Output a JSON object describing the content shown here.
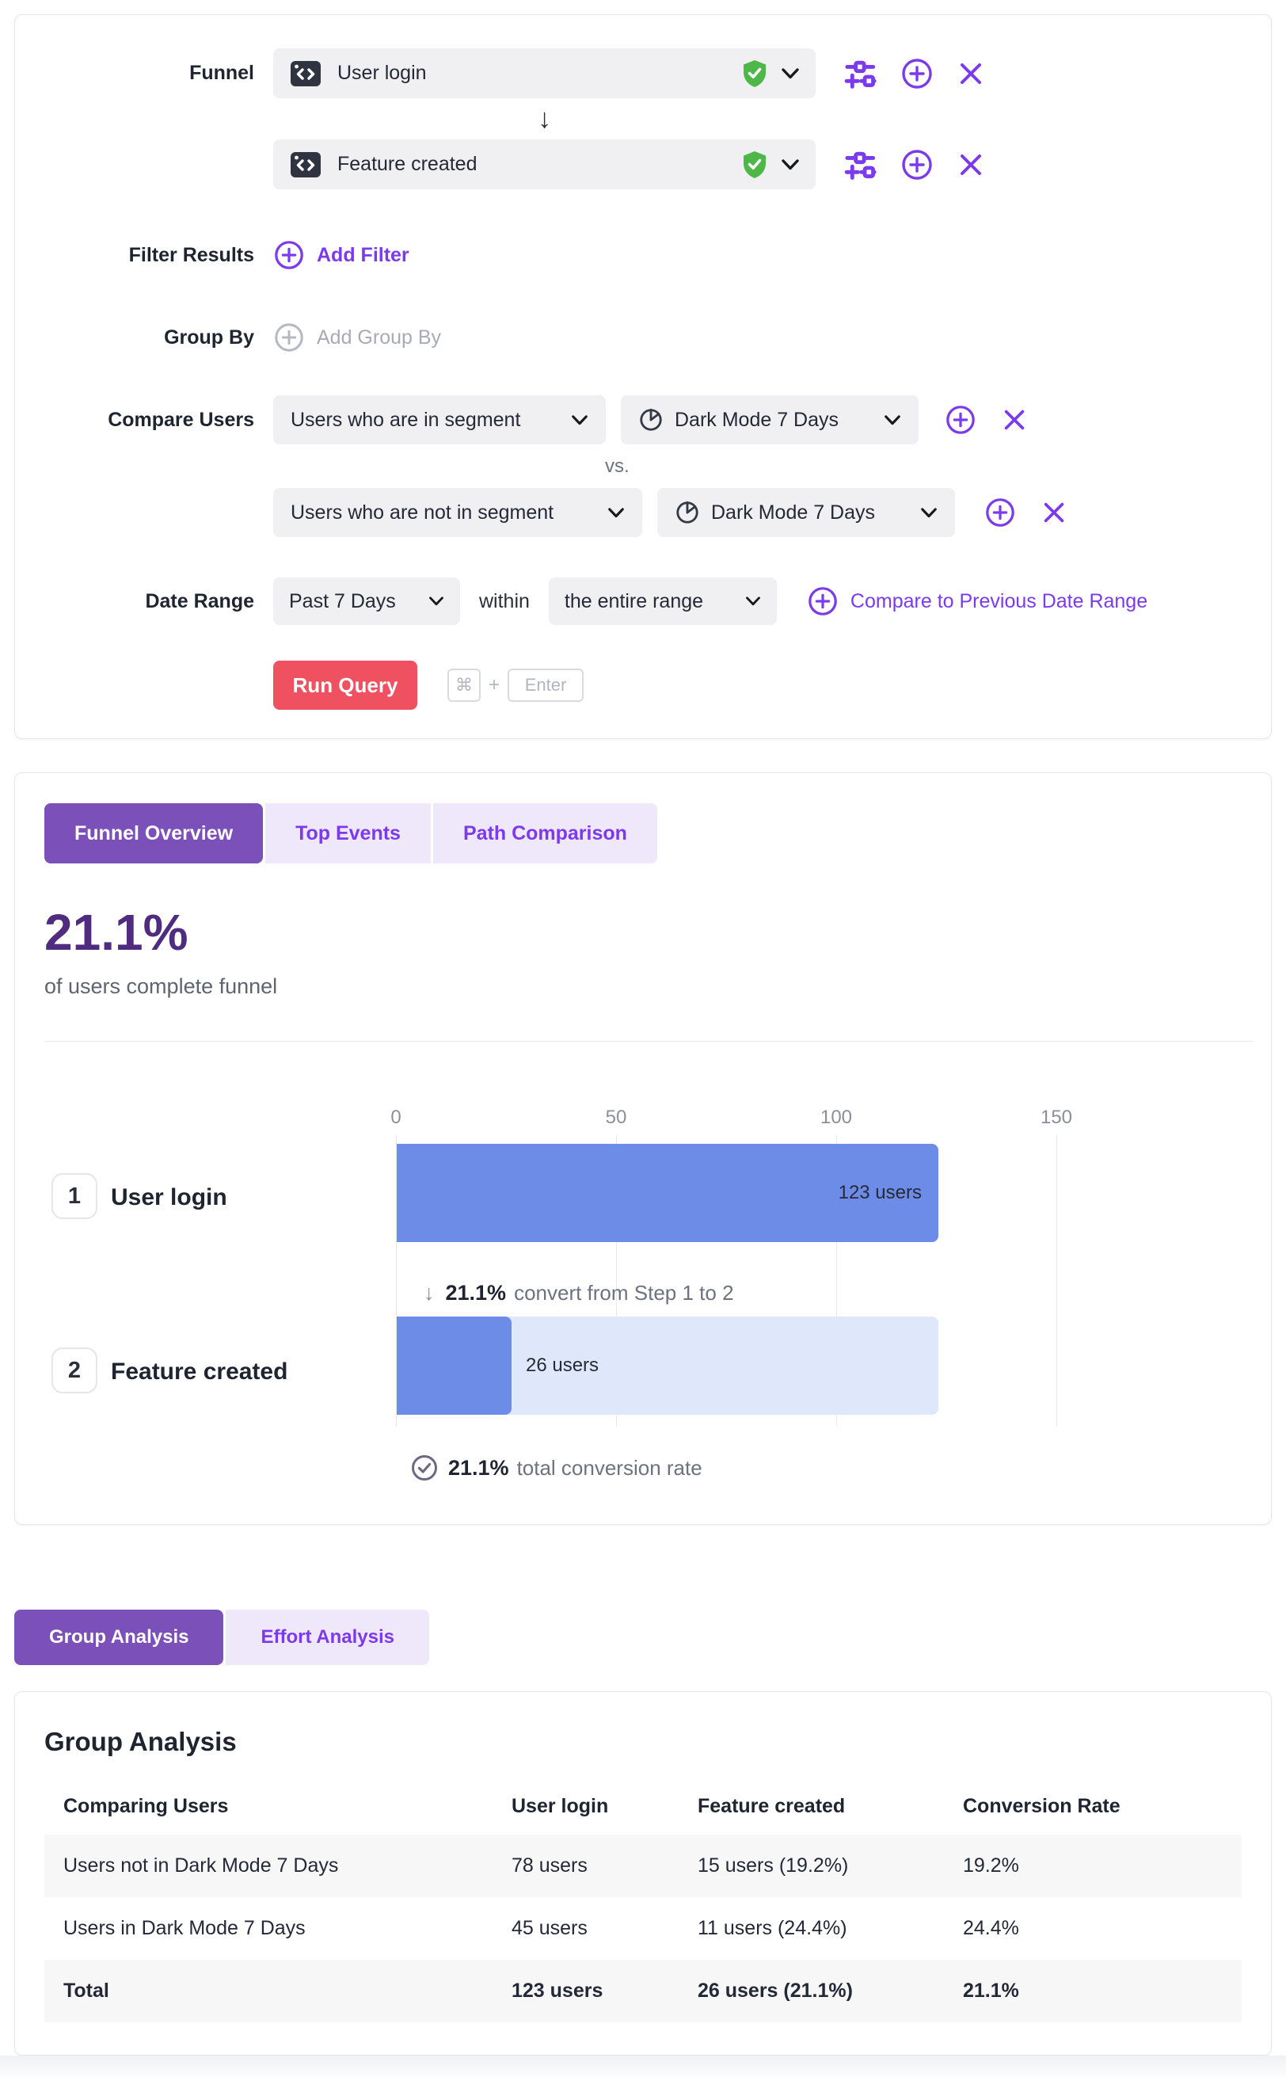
{
  "colors": {
    "accent_purple": "#7C3AED",
    "tab_purple": "#7C50B9",
    "stat_purple": "#4F2C7F",
    "bar_blue": "#6D8CE8",
    "bar_track_blue": "#DFE7FB",
    "run_button_red": "#EF5160",
    "verified_green": "#4DB748"
  },
  "query_builder": {
    "funnel_label": "Funnel",
    "steps": [
      {
        "name": "User login"
      },
      {
        "name": "Feature created"
      }
    ],
    "filter_results": {
      "label": "Filter Results",
      "action": "Add Filter"
    },
    "group_by": {
      "label": "Group By",
      "placeholder": "Add Group By"
    },
    "compare_users": {
      "label": "Compare Users",
      "vs_label": "vs.",
      "rows": [
        {
          "segment_type": "Users who are in segment",
          "segment": "Dark Mode 7 Days"
        },
        {
          "segment_type": "Users who are not in segment",
          "segment": "Dark Mode 7 Days"
        }
      ]
    },
    "date_range": {
      "label": "Date Range",
      "range": "Past 7 Days",
      "within_label": "within",
      "granularity": "the entire range",
      "compare_link": "Compare to Previous Date Range"
    },
    "run_query": {
      "label": "Run Query",
      "shortcut_cmd": "⌘",
      "shortcut_plus": "+",
      "shortcut_key": "Enter"
    }
  },
  "results": {
    "tabs": [
      {
        "label": "Funnel Overview",
        "active": true
      },
      {
        "label": "Top Events",
        "active": false
      },
      {
        "label": "Path Comparison",
        "active": false
      }
    ],
    "headline_stat": "21.1%",
    "headline_caption": "of users complete funnel",
    "conversion_note_value": "21.1%",
    "conversion_note_text": "convert from Step 1 to 2",
    "total_note_value": "21.1%",
    "total_note_text": "total conversion rate"
  },
  "chart_data": {
    "type": "bar",
    "orientation": "horizontal",
    "categories": [
      "User login",
      "Feature created"
    ],
    "step_numbers": [
      "1",
      "2"
    ],
    "values": [
      123,
      26
    ],
    "value_labels": [
      "123 users",
      "26 users"
    ],
    "x_ticks": [
      "0",
      "50",
      "100",
      "150"
    ],
    "xlim": [
      0,
      150
    ],
    "grid": true,
    "conversion_step_1_to_2_pct": 21.1,
    "total_conversion_rate_pct": 21.1
  },
  "analysis_tabs": [
    {
      "label": "Group Analysis",
      "active": true
    },
    {
      "label": "Effort Analysis",
      "active": false
    }
  ],
  "group_analysis": {
    "title": "Group Analysis",
    "columns": [
      "Comparing Users",
      "User login",
      "Feature created",
      "Conversion Rate"
    ],
    "rows": [
      [
        "Users not in Dark Mode 7 Days",
        "78 users",
        "15 users (19.2%)",
        "19.2%"
      ],
      [
        "Users in Dark Mode 7 Days",
        "45 users",
        "11 users (24.4%)",
        "24.4%"
      ]
    ],
    "total_row": [
      "Total",
      "123 users",
      "26 users (21.1%)",
      "21.1%"
    ]
  }
}
